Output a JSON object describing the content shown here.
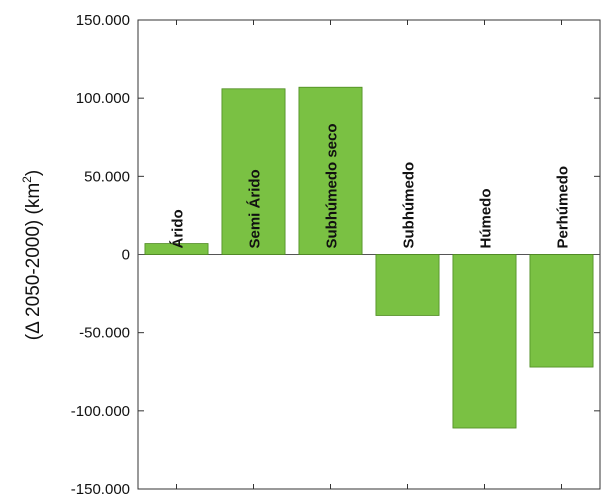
{
  "chart_data": {
    "type": "bar",
    "categories": [
      "Árido",
      "Semi Árido",
      "Subhúmedo seco",
      "Subhúmedo",
      "Húmedo",
      "Perhúmedo"
    ],
    "values": [
      7000,
      106000,
      107000,
      -39000,
      -111000,
      -72000
    ],
    "ylim": [
      -150000,
      150000
    ],
    "yticks": [
      150000,
      100000,
      50000,
      0,
      -50000,
      -100000,
      -150000
    ],
    "ytick_labels": [
      "150.000",
      "100.000",
      "50.000",
      "0",
      "-50.000",
      "-100.000",
      "-150.000"
    ],
    "ylabel": {
      "prefix": "(Δ 2050-2000) (km",
      "superscript": "2",
      "suffix": ")"
    },
    "xlabel": "",
    "title": "",
    "grid": false,
    "bar_color": "#7ac143",
    "bar_stroke": "#4d8a1f"
  }
}
